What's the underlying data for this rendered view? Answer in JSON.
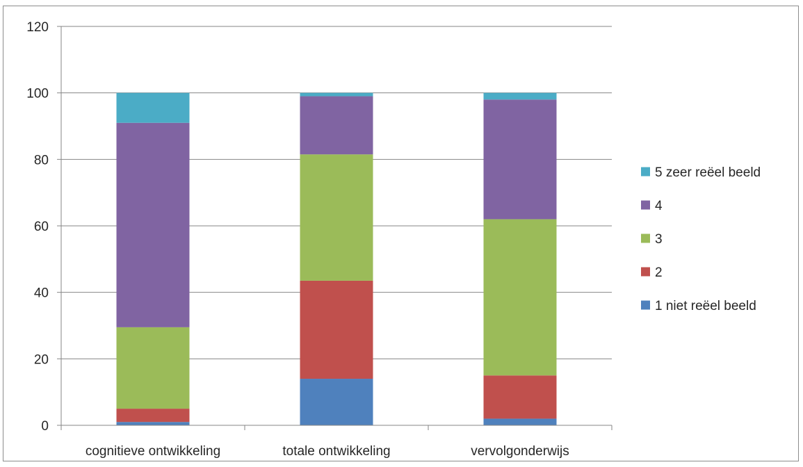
{
  "chart_data": {
    "type": "bar",
    "stacked": true,
    "title": "",
    "xlabel": "",
    "ylabel": "",
    "ylim": [
      0,
      120
    ],
    "y_ticks": [
      0,
      20,
      40,
      60,
      80,
      100,
      120
    ],
    "grid": true,
    "legend_position": "right",
    "categories": [
      "cognitieve ontwikkeling",
      "totale ontwikkeling",
      "vervolgonderwijs"
    ],
    "series": [
      {
        "name": "1 niet reëel beeld",
        "color": "#4f81bd",
        "values": [
          1,
          14,
          2
        ]
      },
      {
        "name": "2",
        "color": "#c0504d",
        "values": [
          4,
          29.5,
          13
        ]
      },
      {
        "name": "3",
        "color": "#9bbb59",
        "values": [
          24.5,
          38,
          47
        ]
      },
      {
        "name": "4",
        "color": "#8064a2",
        "values": [
          61.5,
          17.5,
          36
        ]
      },
      {
        "name": "5 zeer reëel beeld",
        "color": "#4bacc6",
        "values": [
          9,
          1,
          2
        ]
      }
    ]
  }
}
